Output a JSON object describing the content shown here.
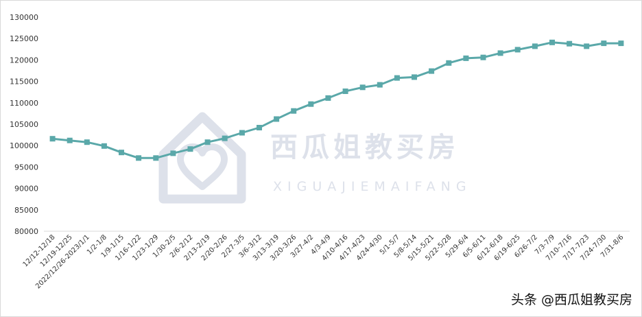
{
  "chart_data": {
    "type": "line",
    "title": "",
    "xlabel": "",
    "ylabel": "",
    "ylim": [
      80000,
      130000
    ],
    "yticks": [
      80000,
      85000,
      90000,
      95000,
      100000,
      105000,
      110000,
      115000,
      120000,
      125000,
      130000
    ],
    "grid": false,
    "legend": "none",
    "line_color": "#5aa8a9",
    "marker_color": "#5aa8a9",
    "categories": [
      "12/12-12/18",
      "12/19-12/25",
      "2022/12/26-2023/1/1",
      "1/2-1/8",
      "1/9-1/15",
      "1/16-1/22",
      "1/23-1/29",
      "1/30-2/5",
      "2/6-2/12",
      "2/13-2/19",
      "2/20-2/26",
      "2/27-3/5",
      "3/6-3/12",
      "3/13-3/19",
      "3/20-3/26",
      "3/27-4/2",
      "4/3-4/9",
      "4/10-4/16",
      "4/17-4/23",
      "4/24-4/30",
      "5/1-5/7",
      "5/8-5/14",
      "5/15-5/21",
      "5/22-5/28",
      "5/29-6/4",
      "6/5-6/11",
      "6/12-6/18",
      "6/19-6/25",
      "6/26-7/2",
      "7/3-7/9",
      "7/10-7/16",
      "7/17-7/23",
      "7/24-7/30",
      "7/31-8/6"
    ],
    "series": [
      {
        "values": [
          101600,
          101200,
          100800,
          99900,
          98400,
          97100,
          97100,
          98200,
          99200,
          100800,
          101700,
          103000,
          104200,
          106200,
          108100,
          109700,
          111100,
          112700,
          113600,
          114200,
          115800,
          116000,
          117400,
          119300,
          120400,
          120600,
          121600,
          122400,
          123200,
          124100,
          123800,
          123200,
          123900,
          123900
        ]
      }
    ]
  },
  "watermark": {
    "cn_text": "西瓜姐教买房",
    "en_text": "XIGUAJIEMAIFANG",
    "icon": "house-heart-icon",
    "color": "#dde1ea"
  },
  "credit": {
    "text": "头条 @西瓜姐教买房"
  }
}
